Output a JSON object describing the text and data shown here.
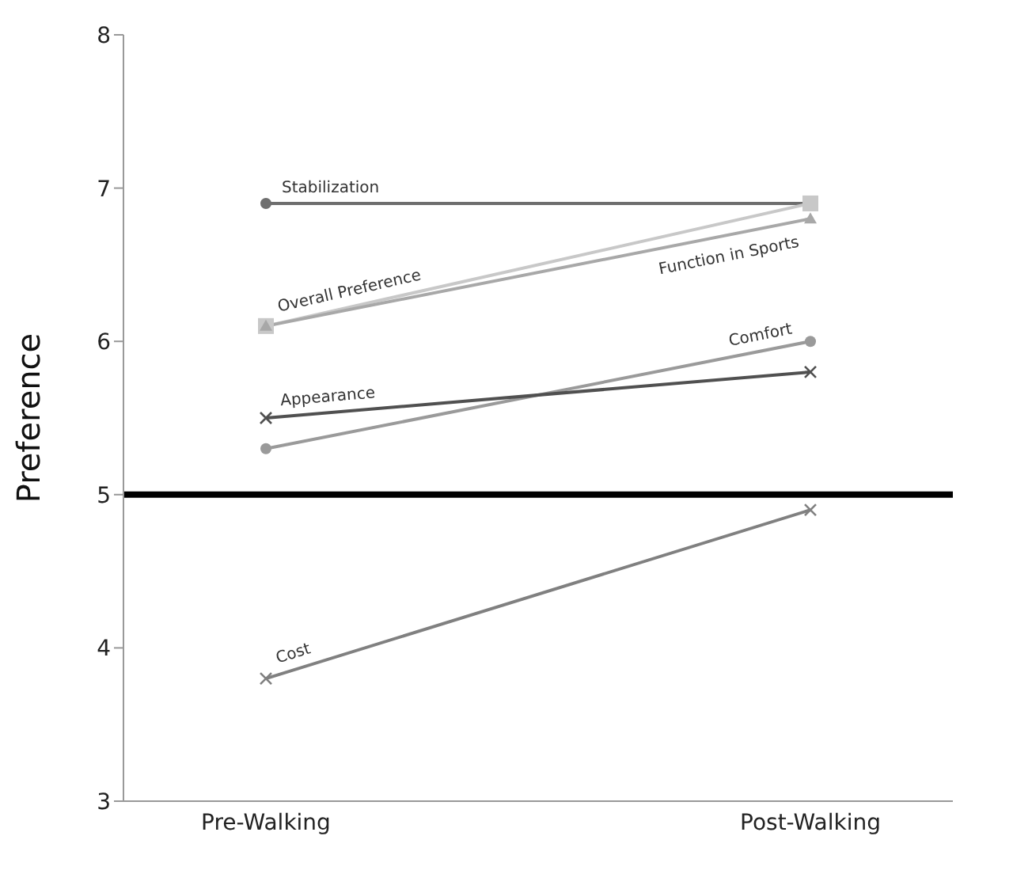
{
  "chart_data": {
    "type": "line",
    "ylabel": "Preference",
    "categories": [
      "Pre-Walking",
      "Post-Walking"
    ],
    "series": [
      {
        "name": "Stabilization",
        "color": "#6e6e6e",
        "marker": "circle",
        "values": [
          6.9,
          6.9
        ]
      },
      {
        "name": "Overall Preference",
        "color": "#c8c8c8",
        "marker": "square",
        "values": [
          6.1,
          6.9
        ]
      },
      {
        "name": "Function in Sports",
        "color": "#a8a8a8",
        "marker": "triangle",
        "values": [
          6.1,
          6.8
        ]
      },
      {
        "name": "Comfort",
        "color": "#9a9a9a",
        "marker": "circle",
        "values": [
          5.3,
          6.0
        ]
      },
      {
        "name": "Appearance",
        "color": "#505050",
        "marker": "cross",
        "values": [
          5.5,
          5.8
        ]
      },
      {
        "name": "Cost",
        "color": "#808080",
        "marker": "cross",
        "values": [
          3.8,
          4.9
        ]
      }
    ],
    "ylim": [
      3,
      8
    ],
    "yticks": [
      3,
      4,
      5,
      6,
      7,
      8
    ],
    "ref_lines": [
      {
        "axis": "y",
        "value": 5,
        "color": "#000000"
      }
    ],
    "grid": false,
    "legend": false
  }
}
